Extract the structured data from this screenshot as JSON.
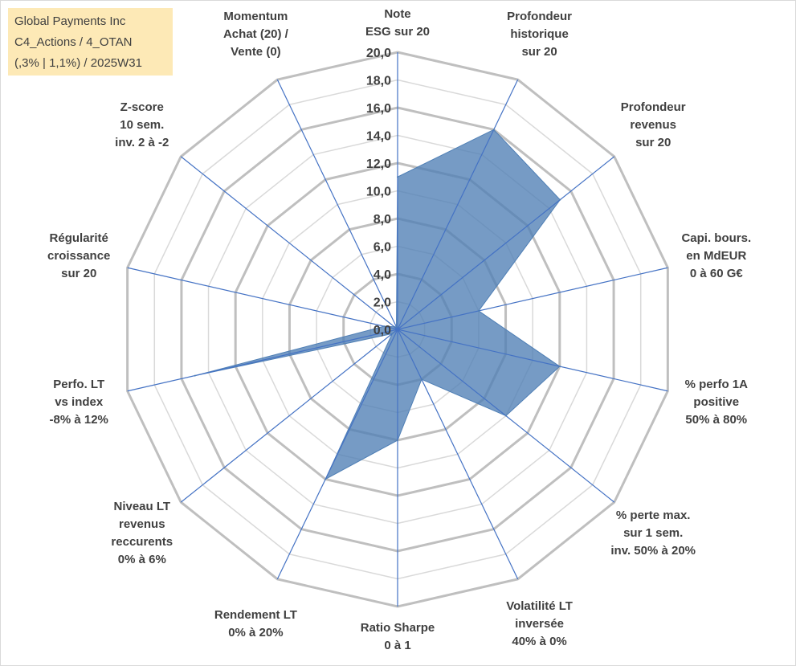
{
  "title_box": {
    "line1": "Global Payments Inc",
    "line2": "C4_Actions / 4_OTAN",
    "line3": "(,3% | 1,1%) / 2025W31"
  },
  "colors": {
    "area_fill": "#4f7fb5",
    "spoke": "#4472c4",
    "grid_outer": "#bfbfbf",
    "grid_inner": "#d9d9d9",
    "title_bg": "#fde9b6",
    "text": "#404040"
  },
  "chart_data": {
    "type": "radar",
    "title": "",
    "rmin": 0,
    "rmax": 20,
    "tick_step": 2,
    "tick_labels": [
      "0,0",
      "2,0",
      "4,0",
      "6,0",
      "8,0",
      "10,0",
      "12,0",
      "14,0",
      "16,0",
      "18,0",
      "20,0"
    ],
    "axes": [
      {
        "lines": [
          "Note",
          "ESG sur 20"
        ]
      },
      {
        "lines": [
          "Profondeur",
          "historique",
          "sur 20"
        ]
      },
      {
        "lines": [
          "Profondeur",
          "revenus",
          "sur 20"
        ]
      },
      {
        "lines": [
          "Capi. bours.",
          "en MdEUR",
          "0 à 60 G€"
        ]
      },
      {
        "lines": [
          "% perfo 1A",
          "positive",
          "50% à 80%"
        ]
      },
      {
        "lines": [
          "% perte max.",
          "sur 1 sem.",
          "inv. 50% à 20%"
        ]
      },
      {
        "lines": [
          "Volatilité LT",
          "inversée",
          "40% à 0%"
        ]
      },
      {
        "lines": [
          "Ratio Sharpe",
          "0 à 1"
        ]
      },
      {
        "lines": [
          "Rendement LT",
          "0% à 20%"
        ]
      },
      {
        "lines": [
          "Niveau LT",
          "revenus",
          "reccurents",
          "0% à 6%"
        ]
      },
      {
        "lines": [
          "Perfo. LT",
          "vs index",
          "-8% à 12%"
        ]
      },
      {
        "lines": [
          "Régularité",
          "croissance",
          "sur 20"
        ]
      },
      {
        "lines": [
          "Z-score",
          "10 sem.",
          "inv. 2 à -2"
        ]
      },
      {
        "lines": [
          "Momentum",
          "Achat (20) /",
          "Vente (0)"
        ]
      }
    ],
    "series": [
      {
        "values": [
          11.0,
          16.0,
          15.0,
          6.0,
          12.0,
          10.0,
          4.0,
          8.0,
          12.0,
          0.5,
          15.0,
          1.0,
          0.3,
          0.2
        ]
      }
    ]
  }
}
